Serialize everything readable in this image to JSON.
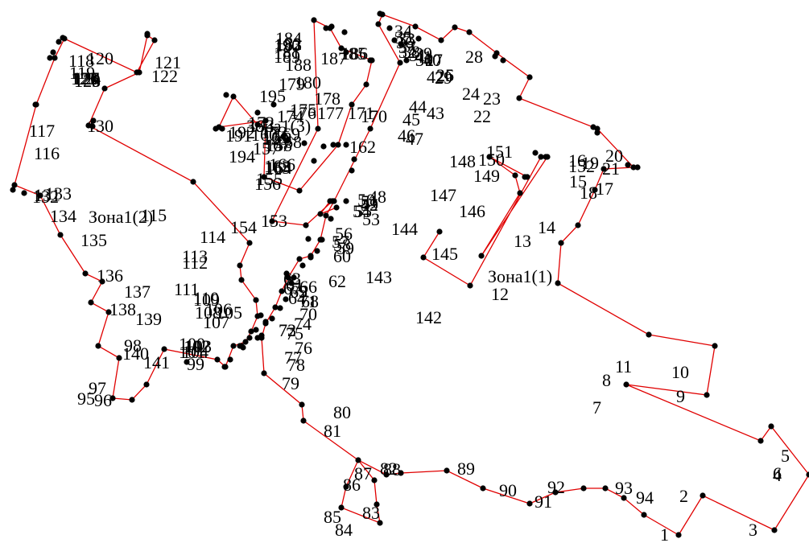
{
  "zones": [
    {
      "label": "Зона1(1)",
      "points": [
        "1",
        "2",
        "3",
        "4",
        "5",
        "6",
        "7",
        "8",
        "9",
        "10",
        "11",
        "12",
        "13",
        "14",
        "15",
        "16",
        "17",
        "18",
        "19",
        "20",
        "21",
        "22",
        "23",
        "24",
        "25",
        "26",
        "27",
        "28",
        "29",
        "30",
        "31",
        "32",
        "33",
        "34",
        "35",
        "36",
        "37",
        "38",
        "39",
        "40",
        "41",
        "42",
        "43",
        "44",
        "45",
        "46",
        "47",
        "48",
        "49",
        "50",
        "51",
        "52",
        "53",
        "54",
        "55",
        "56",
        "57",
        "58",
        "59",
        "60",
        "61",
        "62",
        "63",
        "64",
        "65",
        "66",
        "67",
        "68",
        "69",
        "70",
        "71",
        "72",
        "73",
        "74",
        "75",
        "76",
        "77",
        "78",
        "79",
        "80",
        "81",
        "82",
        "83",
        "84",
        "85",
        "86",
        "87",
        "88",
        "89",
        "90",
        "91",
        "92",
        "93",
        "94"
      ]
    },
    {
      "label": "Зона1(2)",
      "points": [
        "95",
        "96",
        "97",
        "98",
        "99",
        "100",
        "101",
        "102",
        "103",
        "104",
        "105",
        "106",
        "107",
        "108",
        "109",
        "110",
        "111",
        "112",
        "113",
        "114",
        "115",
        "116",
        "117",
        "118",
        "119",
        "120",
        "121",
        "122",
        "123",
        "124",
        "125",
        "126",
        "127",
        "128",
        "129",
        "130",
        "131",
        "132",
        "133",
        "134",
        "135",
        "136",
        "137",
        "138",
        "139",
        "140",
        "141"
      ]
    },
    {
      "label": "Зона1(3)",
      "points": [
        "142",
        "143",
        "144",
        "145",
        "146",
        "147",
        "148",
        "149",
        "150",
        "151",
        "152",
        "153",
        "154",
        "155",
        "156",
        "157",
        "158",
        "159",
        "160",
        "161",
        "162",
        "163",
        "164",
        "165",
        "166",
        "167",
        "168",
        "169",
        "170",
        "171",
        "172",
        "173",
        "174",
        "175",
        "176",
        "177",
        "178",
        "179",
        "180",
        "181",
        "182",
        "183",
        "184",
        "185",
        "186",
        "187",
        "188",
        "189",
        "190",
        "191",
        "192",
        "193",
        "194",
        "195",
        "196"
      ]
    }
  ],
  "point_labels": [
    "1",
    "2",
    "3",
    "4",
    "5",
    "6",
    "7",
    "8",
    "9",
    "10",
    "11",
    "12",
    "13",
    "14",
    "15",
    "16",
    "17",
    "18",
    "19",
    "20",
    "21",
    "22",
    "23",
    "24",
    "25",
    "26",
    "27",
    "28",
    "29",
    "30",
    "31",
    "32",
    "33",
    "34",
    "35",
    "36",
    "37",
    "38",
    "39",
    "40",
    "41",
    "42",
    "43",
    "44",
    "45",
    "46",
    "47",
    "48",
    "49",
    "50",
    "51",
    "52",
    "53",
    "54",
    "55",
    "56",
    "57",
    "58",
    "59",
    "60",
    "61",
    "62",
    "63",
    "64",
    "65",
    "66",
    "67",
    "68",
    "69",
    "70",
    "71",
    "72",
    "73",
    "74",
    "75",
    "76",
    "77",
    "78",
    "79",
    "80",
    "81",
    "82",
    "83",
    "84",
    "85",
    "86",
    "87",
    "88",
    "89",
    "90",
    "91",
    "92",
    "93",
    "94",
    "95",
    "96",
    "97",
    "98",
    "99",
    "100",
    "101",
    "102",
    "103",
    "104",
    "105",
    "106",
    "107",
    "108",
    "109",
    "110",
    "111",
    "112",
    "113",
    "114",
    "115",
    "116",
    "117",
    "118",
    "119",
    "120",
    "121",
    "122",
    "123",
    "124",
    "125",
    "126",
    "127",
    "128",
    "129",
    "130",
    "131",
    "132",
    "133",
    "134",
    "135",
    "136",
    "137",
    "138",
    "139",
    "140",
    "141",
    "142",
    "143",
    "144",
    "145",
    "146",
    "147",
    "148",
    "149",
    "150",
    "151",
    "152",
    "153",
    "154",
    "155",
    "156",
    "157",
    "158",
    "159",
    "160",
    "161",
    "162",
    "163",
    "164",
    "165",
    "166",
    "167",
    "168",
    "169",
    "170",
    "171",
    "172",
    "173",
    "174",
    "175",
    "176",
    "177",
    "178",
    "179",
    "180",
    "181",
    "182",
    "183",
    "184",
    "185",
    "186",
    "187",
    "188",
    "189",
    "190",
    "191",
    "192",
    "193",
    "194",
    "195",
    "196"
  ],
  "colors": {
    "boundary": "#e00000",
    "point": "#000000",
    "text": "#000000"
  }
}
